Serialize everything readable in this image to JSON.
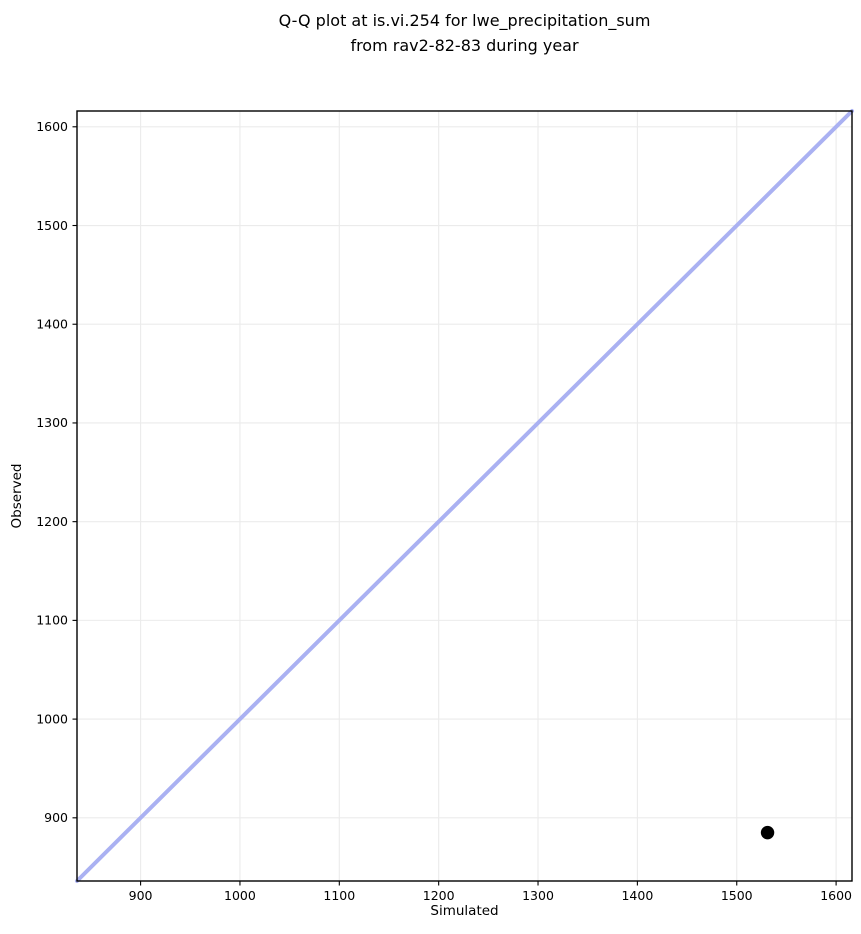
{
  "figure": {
    "title_line1": "Q-Q plot at is.vi.254 for lwe_precipitation_sum",
    "title_line2": "from rav2-82-83 during year"
  },
  "chart_data": {
    "type": "scatter",
    "title": "Q-Q plot at is.vi.254 for lwe_precipitation_sum from rav2-82-83 during year",
    "xlabel": "Simulated",
    "ylabel": "Observed",
    "xlim": [
      836,
      1616
    ],
    "ylim": [
      836,
      1616
    ],
    "x_ticks": [
      900,
      1000,
      1100,
      1200,
      1300,
      1400,
      1500,
      1600
    ],
    "y_ticks": [
      900,
      1000,
      1100,
      1200,
      1300,
      1400,
      1500,
      1600
    ],
    "grid": true,
    "grid_color": "#ebebeb",
    "identity_line": {
      "from": [
        836,
        836
      ],
      "to": [
        1616,
        1616
      ],
      "color": "#aab1f2",
      "width": 4
    },
    "points": [
      {
        "x": 1531,
        "y": 885
      }
    ],
    "point_color": "#000000",
    "point_radius": 6.7,
    "spine_color": "#000000",
    "tick_label_color": "#000000"
  }
}
